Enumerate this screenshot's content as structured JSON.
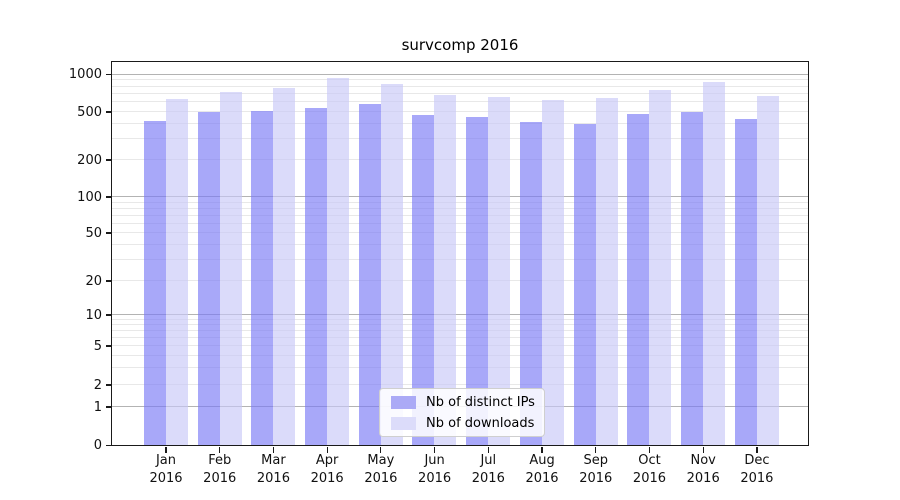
{
  "title": "survcomp 2016",
  "legend": {
    "items": [
      {
        "label": "Nb of distinct IPs",
        "color": "#abaaf6"
      },
      {
        "label": "Nb of downloads",
        "color": "#dcdcfa"
      }
    ]
  },
  "axes": {
    "y_ticks": [
      {
        "label": "1000",
        "value": 1000
      },
      {
        "label": "500",
        "value": 500
      },
      {
        "label": "200",
        "value": 200
      },
      {
        "label": "100",
        "value": 100
      },
      {
        "label": "50",
        "value": 50
      },
      {
        "label": "20",
        "value": 20
      },
      {
        "label": "10",
        "value": 10
      },
      {
        "label": "5",
        "value": 5
      },
      {
        "label": "2",
        "value": 2
      },
      {
        "label": "1",
        "value": 1
      },
      {
        "label": "0",
        "value": 0
      }
    ],
    "x_ticks": [
      {
        "line1": "Jan",
        "line2": "2016"
      },
      {
        "line1": "Feb",
        "line2": "2016"
      },
      {
        "line1": "Mar",
        "line2": "2016"
      },
      {
        "line1": "Apr",
        "line2": "2016"
      },
      {
        "line1": "May",
        "line2": "2016"
      },
      {
        "line1": "Jun",
        "line2": "2016"
      },
      {
        "line1": "Jul",
        "line2": "2016"
      },
      {
        "line1": "Aug",
        "line2": "2016"
      },
      {
        "line1": "Sep",
        "line2": "2016"
      },
      {
        "line1": "Oct",
        "line2": "2016"
      },
      {
        "line1": "Nov",
        "line2": "2016"
      },
      {
        "line1": "Dec",
        "line2": "2016"
      }
    ]
  },
  "grid": {
    "major_color": "#b3b3b3",
    "minor_color": "#e8e8e8",
    "major_values": [
      1,
      10,
      100,
      1000
    ],
    "minor_values": [
      2,
      3,
      4,
      5,
      6,
      7,
      8,
      9,
      20,
      30,
      40,
      50,
      60,
      70,
      80,
      90,
      200,
      300,
      400,
      500,
      600,
      700,
      800,
      900
    ]
  },
  "chart_data": {
    "type": "bar",
    "title": "survcomp 2016",
    "categories": [
      "Jan 2016",
      "Feb 2016",
      "Mar 2016",
      "Apr 2016",
      "May 2016",
      "Jun 2016",
      "Jul 2016",
      "Aug 2016",
      "Sep 2016",
      "Oct 2016",
      "Nov 2016",
      "Dec 2016"
    ],
    "series": [
      {
        "name": "Nb of distinct IPs",
        "color": "#abaaf6",
        "fill": "rgba(122,122,246,0.65)",
        "values": [
          420,
          495,
          510,
          540,
          575,
          470,
          450,
          410,
          400,
          480,
          500,
          440
        ]
      },
      {
        "name": "Nb of downloads",
        "color": "#dcdcfa",
        "fill": "rgba(199,199,248,0.65)",
        "values": [
          630,
          720,
          775,
          930,
          830,
          685,
          655,
          620,
          645,
          750,
          870,
          675
        ]
      }
    ],
    "xlabel": "",
    "ylabel": "",
    "yscale": "symlog",
    "y_tick_values": [
      0,
      1,
      2,
      5,
      10,
      20,
      50,
      100,
      200,
      500,
      1000
    ],
    "ylim": [
      0,
      1250
    ],
    "grid": "both",
    "legend_position": "lower center"
  }
}
